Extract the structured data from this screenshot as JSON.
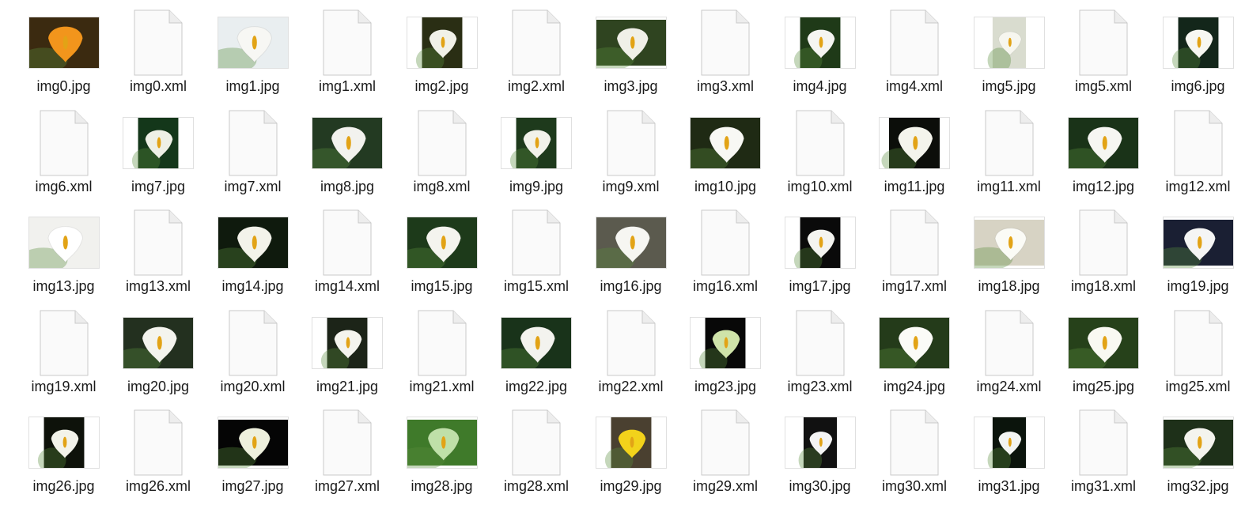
{
  "files": [
    {
      "name": "img0.jpg",
      "kind": "jpg",
      "bg": "#3b2a10",
      "flower": "#f2951c",
      "shape": "landscape"
    },
    {
      "name": "img0.xml",
      "kind": "xml"
    },
    {
      "name": "img1.jpg",
      "kind": "jpg",
      "bg": "#e9eef0",
      "flower": "#f7f7f4",
      "shape": "landscape"
    },
    {
      "name": "img1.xml",
      "kind": "xml"
    },
    {
      "name": "img2.jpg",
      "kind": "jpg",
      "bg": "#2a2e14",
      "flower": "#f1f1e8",
      "shape": "portrait"
    },
    {
      "name": "img2.xml",
      "kind": "xml"
    },
    {
      "name": "img3.jpg",
      "kind": "jpg",
      "bg": "#2f4420",
      "flower": "#f0f0e8",
      "shape": "wide"
    },
    {
      "name": "img3.xml",
      "kind": "xml"
    },
    {
      "name": "img4.jpg",
      "kind": "jpg",
      "bg": "#1f3a18",
      "flower": "#f5f5f2",
      "shape": "portrait"
    },
    {
      "name": "img4.xml",
      "kind": "xml"
    },
    {
      "name": "img5.jpg",
      "kind": "jpg",
      "bg": "#d9dccf",
      "flower": "#f6f6ef",
      "shape": "square"
    },
    {
      "name": "img5.xml",
      "kind": "xml"
    },
    {
      "name": "img6.jpg",
      "kind": "jpg",
      "bg": "#13261a",
      "flower": "#f7f7f2",
      "shape": "portrait"
    },
    {
      "name": "img6.xml",
      "kind": "xml"
    },
    {
      "name": "img7.jpg",
      "kind": "jpg",
      "bg": "#14371a",
      "flower": "#eef0e6",
      "shape": "portrait"
    },
    {
      "name": "img7.xml",
      "kind": "xml"
    },
    {
      "name": "img8.jpg",
      "kind": "jpg",
      "bg": "#233a22",
      "flower": "#f2f2ee",
      "shape": "landscape"
    },
    {
      "name": "img8.xml",
      "kind": "xml"
    },
    {
      "name": "img9.jpg",
      "kind": "jpg",
      "bg": "#1e3a1c",
      "flower": "#f2f2ea",
      "shape": "portrait"
    },
    {
      "name": "img9.xml",
      "kind": "xml"
    },
    {
      "name": "img10.jpg",
      "kind": "jpg",
      "bg": "#1f2a14",
      "flower": "#f8f8f4",
      "shape": "landscape"
    },
    {
      "name": "img10.xml",
      "kind": "xml"
    },
    {
      "name": "img11.jpg",
      "kind": "jpg",
      "bg": "#0c0e0a",
      "flower": "#f4f4ec",
      "shape": "landscape-tall"
    },
    {
      "name": "img11.xml",
      "kind": "xml"
    },
    {
      "name": "img12.jpg",
      "kind": "jpg",
      "bg": "#1a3318",
      "flower": "#f6f6f2",
      "shape": "landscape"
    },
    {
      "name": "img12.xml",
      "kind": "xml"
    },
    {
      "name": "img13.jpg",
      "kind": "jpg",
      "bg": "#f1f1ee",
      "flower": "#ffffff",
      "shape": "landscape"
    },
    {
      "name": "img13.xml",
      "kind": "xml"
    },
    {
      "name": "img14.jpg",
      "kind": "jpg",
      "bg": "#0f1a0d",
      "flower": "#f3f3ea",
      "shape": "landscape"
    },
    {
      "name": "img14.xml",
      "kind": "xml"
    },
    {
      "name": "img15.jpg",
      "kind": "jpg",
      "bg": "#1d3a1a",
      "flower": "#f4f4ee",
      "shape": "landscape"
    },
    {
      "name": "img15.xml",
      "kind": "xml"
    },
    {
      "name": "img16.jpg",
      "kind": "jpg",
      "bg": "#5b5a4e",
      "flower": "#f6f6f2",
      "shape": "landscape"
    },
    {
      "name": "img16.xml",
      "kind": "xml"
    },
    {
      "name": "img17.jpg",
      "kind": "jpg",
      "bg": "#0a0a0a",
      "flower": "#f4f4f0",
      "shape": "portrait"
    },
    {
      "name": "img17.xml",
      "kind": "xml"
    },
    {
      "name": "img18.jpg",
      "kind": "jpg",
      "bg": "#d7d3c4",
      "flower": "#fbfbf6",
      "shape": "landscape-short"
    },
    {
      "name": "img18.xml",
      "kind": "xml"
    },
    {
      "name": "img19.jpg",
      "kind": "jpg",
      "bg": "#1a1f33",
      "flower": "#f5f5f5",
      "shape": "landscape-short"
    },
    {
      "name": "img19.xml",
      "kind": "xml"
    },
    {
      "name": "img20.jpg",
      "kind": "jpg",
      "bg": "#23301f",
      "flower": "#f4f4ee",
      "shape": "landscape"
    },
    {
      "name": "img20.xml",
      "kind": "xml"
    },
    {
      "name": "img21.jpg",
      "kind": "jpg",
      "bg": "#1c2418",
      "flower": "#f4f4ee",
      "shape": "portrait"
    },
    {
      "name": "img21.xml",
      "kind": "xml"
    },
    {
      "name": "img22.jpg",
      "kind": "jpg",
      "bg": "#19331a",
      "flower": "#f3f3ee",
      "shape": "landscape"
    },
    {
      "name": "img22.xml",
      "kind": "xml"
    },
    {
      "name": "img23.jpg",
      "kind": "jpg",
      "bg": "#080808",
      "flower": "#cfe3a9",
      "shape": "portrait"
    },
    {
      "name": "img23.xml",
      "kind": "xml"
    },
    {
      "name": "img24.jpg",
      "kind": "jpg",
      "bg": "#243b1a",
      "flower": "#fbfbf7",
      "shape": "landscape"
    },
    {
      "name": "img24.xml",
      "kind": "xml"
    },
    {
      "name": "img25.jpg",
      "kind": "jpg",
      "bg": "#26411a",
      "flower": "#f9f9f2",
      "shape": "landscape"
    },
    {
      "name": "img25.xml",
      "kind": "xml"
    },
    {
      "name": "img26.jpg",
      "kind": "jpg",
      "bg": "#0e120a",
      "flower": "#f3f3ea",
      "shape": "portrait"
    },
    {
      "name": "img26.xml",
      "kind": "xml"
    },
    {
      "name": "img27.jpg",
      "kind": "jpg",
      "bg": "#050505",
      "flower": "#eef0dd",
      "shape": "landscape-short"
    },
    {
      "name": "img27.xml",
      "kind": "xml"
    },
    {
      "name": "img28.jpg",
      "kind": "jpg",
      "bg": "#3f7a2a",
      "flower": "#bfe0a8",
      "shape": "landscape-short"
    },
    {
      "name": "img28.xml",
      "kind": "xml"
    },
    {
      "name": "img29.jpg",
      "kind": "jpg",
      "bg": "#4a4030",
      "flower": "#f2d21b",
      "shape": "portrait"
    },
    {
      "name": "img29.xml",
      "kind": "xml"
    },
    {
      "name": "img30.jpg",
      "kind": "jpg",
      "bg": "#111111",
      "flower": "#f4f4f4",
      "shape": "square"
    },
    {
      "name": "img30.xml",
      "kind": "xml"
    },
    {
      "name": "img31.jpg",
      "kind": "jpg",
      "bg": "#0b140c",
      "flower": "#f3f5f3",
      "shape": "square"
    },
    {
      "name": "img31.xml",
      "kind": "xml"
    },
    {
      "name": "img32.jpg",
      "kind": "jpg",
      "bg": "#1e3019",
      "flower": "#f4f4ee",
      "shape": "landscape-short"
    }
  ]
}
